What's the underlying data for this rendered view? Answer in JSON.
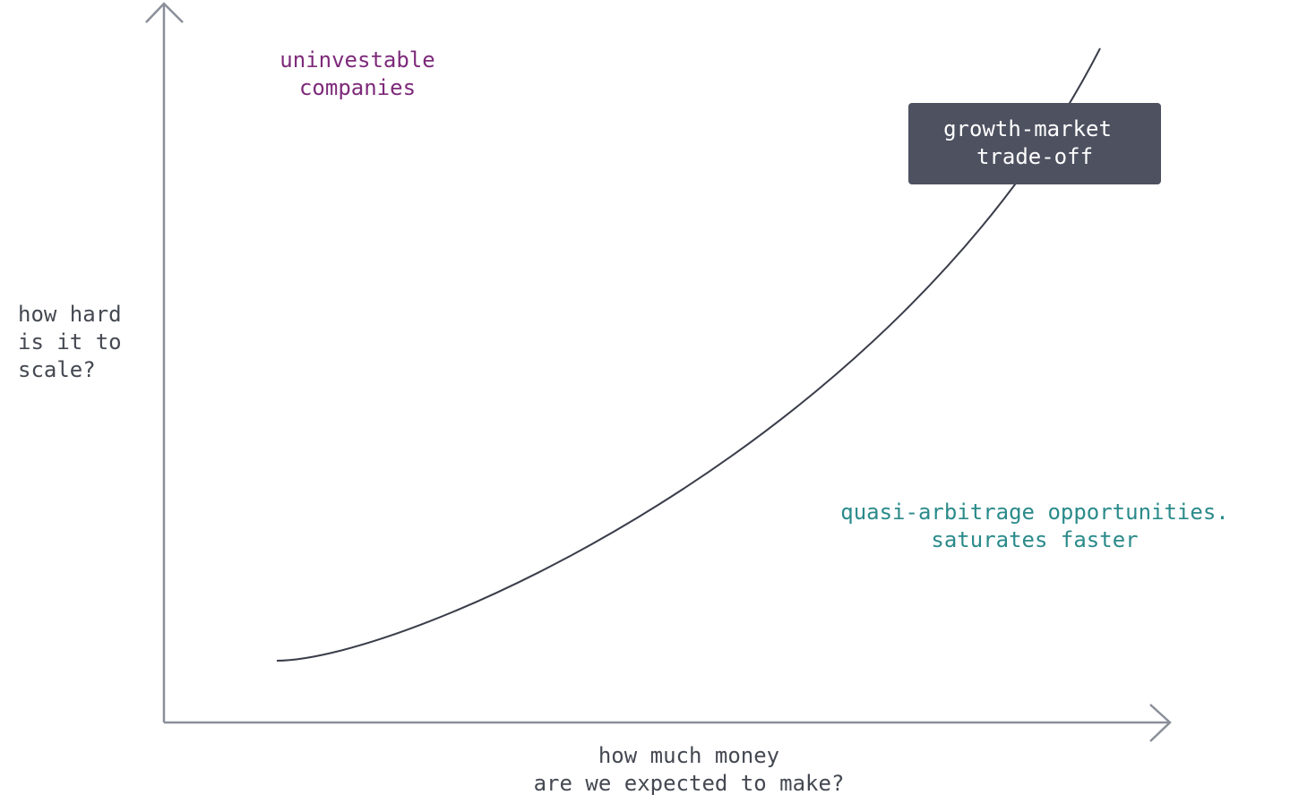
{
  "axes": {
    "y_label": [
      "how hard",
      "is it to",
      "scale?"
    ],
    "x_label": [
      "how much money",
      "are we expected to make?"
    ]
  },
  "regions": {
    "top_left": [
      "uninvestable",
      "companies"
    ],
    "curve_box": [
      "growth-market",
      "trade-off"
    ],
    "bottom_right": [
      "quasi-arbitrage opportunities.",
      "saturates faster"
    ]
  }
}
